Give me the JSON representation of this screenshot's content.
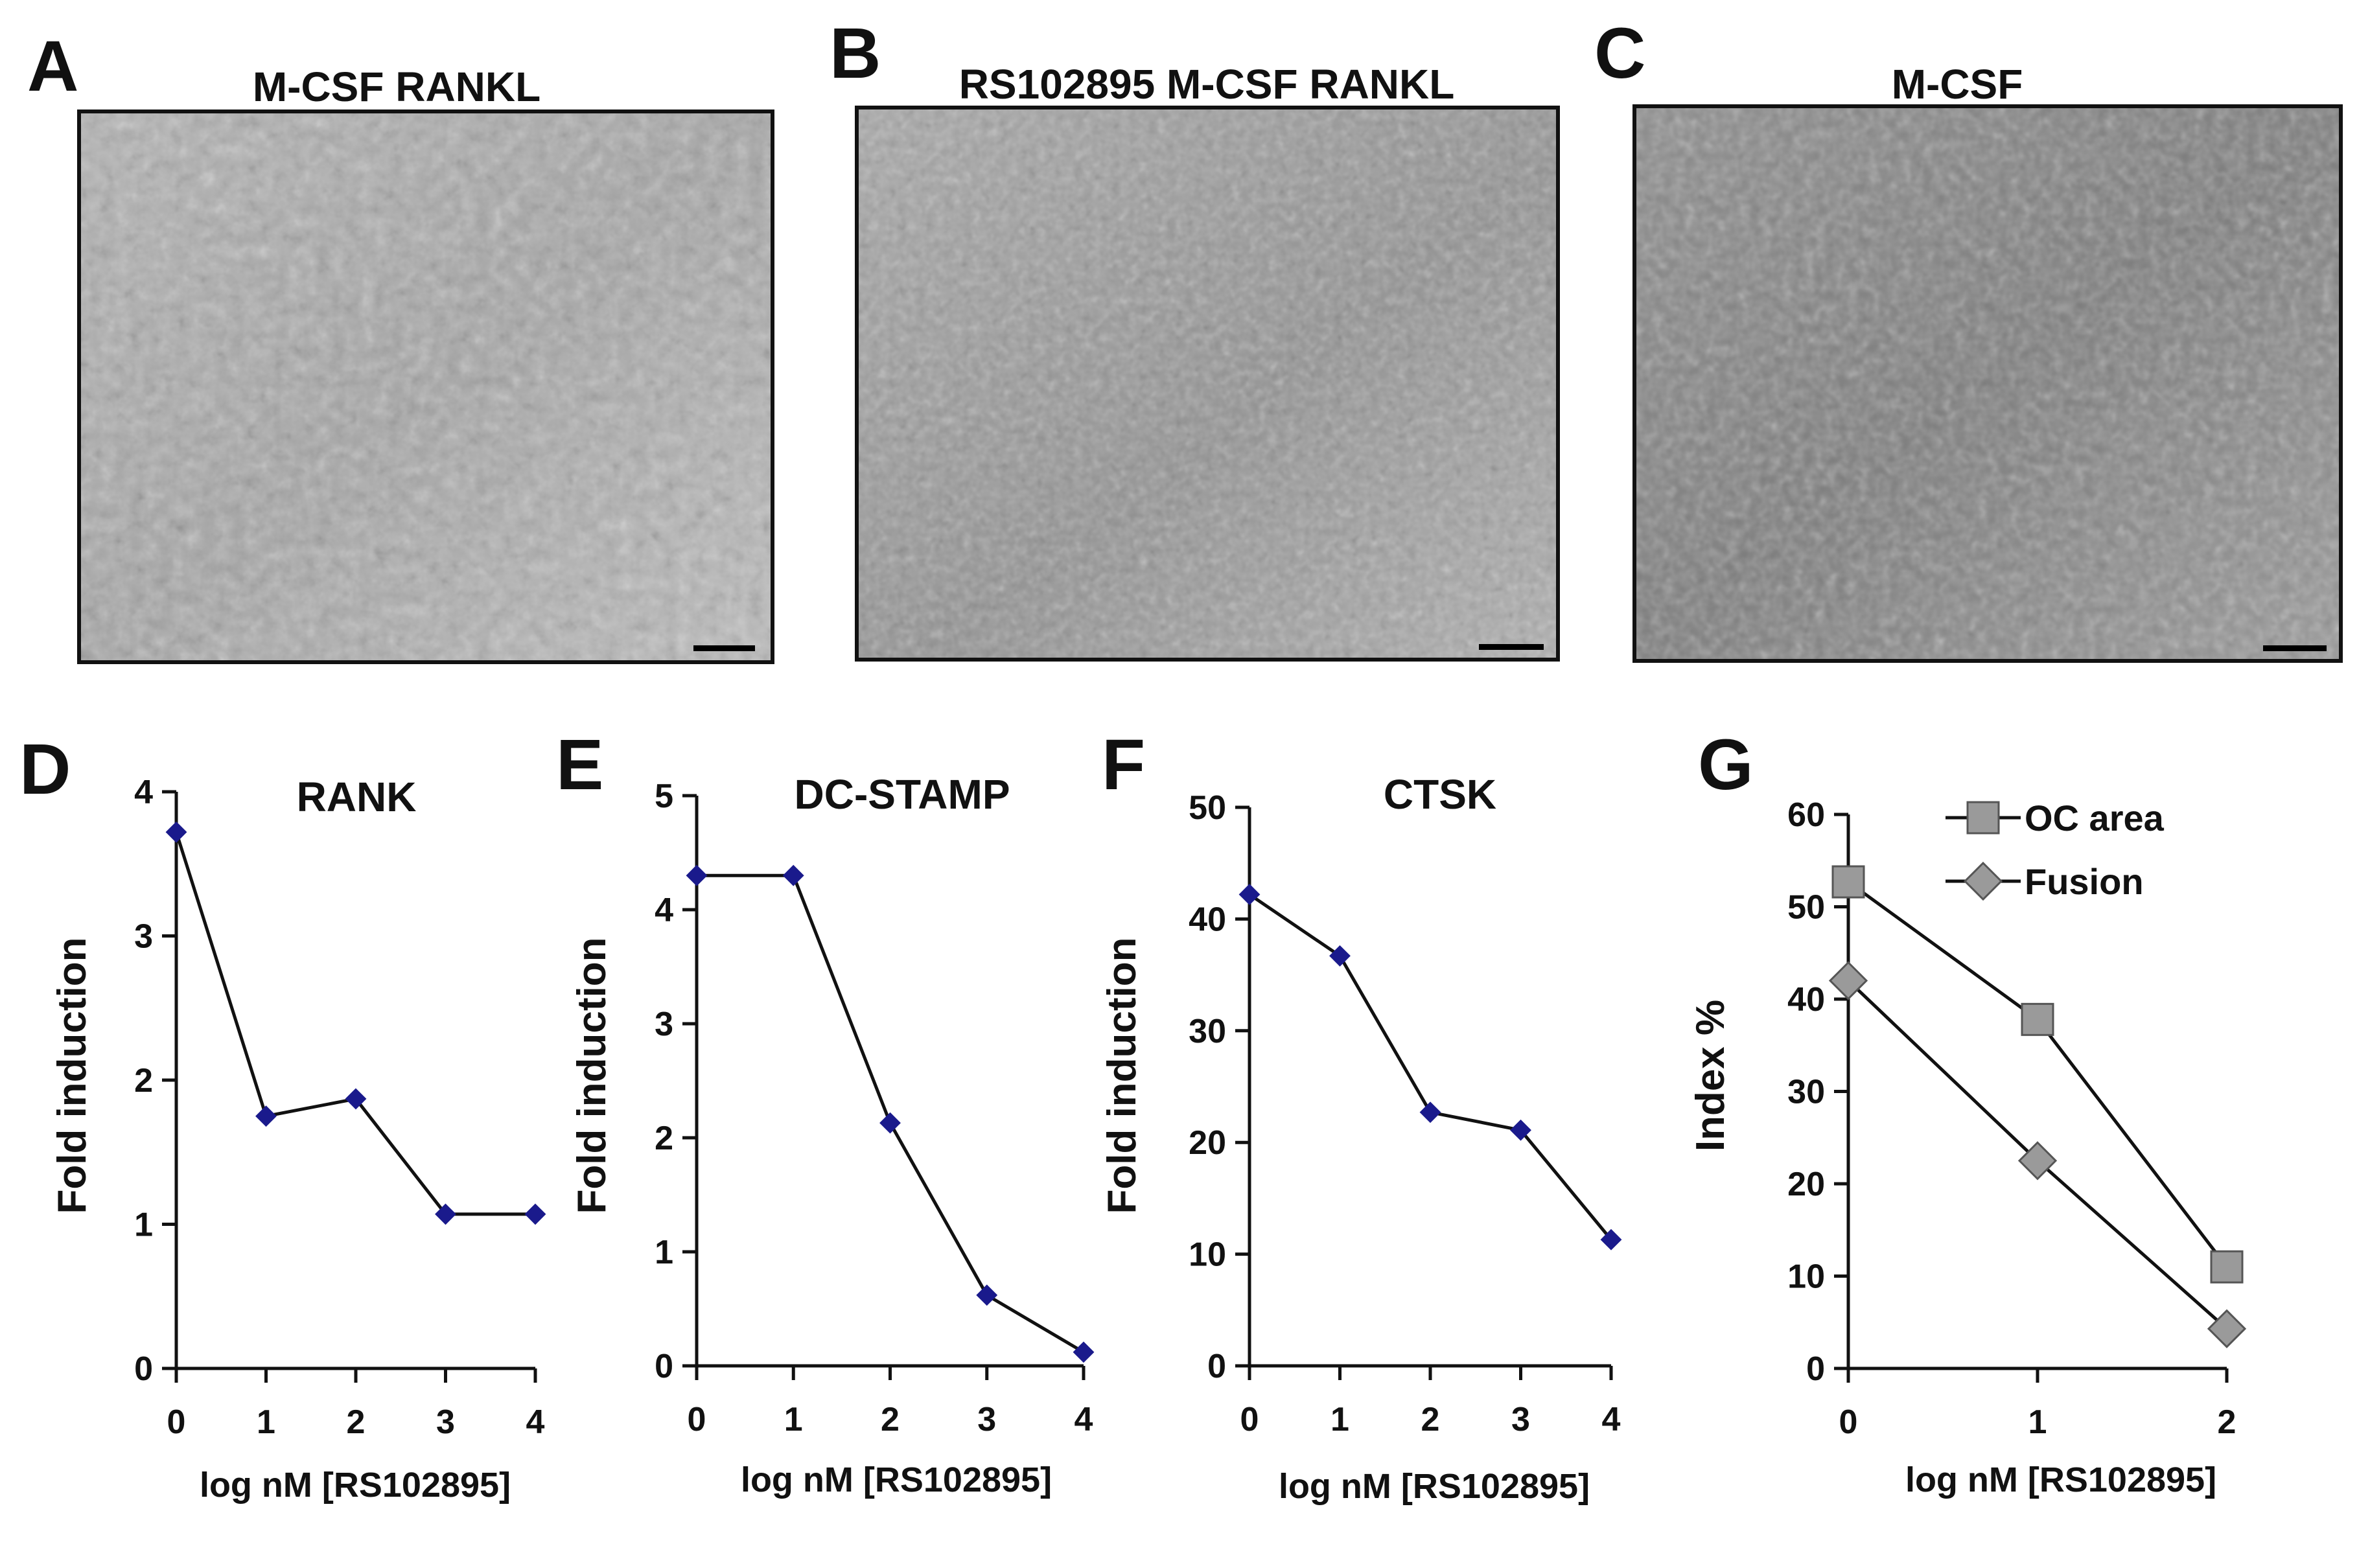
{
  "colors": {
    "marker_blue": "#1a1a8c",
    "marker_gray": "#9a9a9a",
    "line": "#111111"
  },
  "micrographs": [
    {
      "label": "A",
      "title": "M-CSF RANKL"
    },
    {
      "label": "B",
      "title": "RS102895 M-CSF RANKL"
    },
    {
      "label": "C",
      "title": "M-CSF"
    }
  ],
  "chart_data": [
    {
      "label": "D",
      "type": "line",
      "title": "RANK",
      "xlabel": "log nM [RS102895]",
      "ylabel": "Fold induction",
      "x": [
        0,
        1,
        2,
        3,
        4
      ],
      "xticks": [
        "0",
        "1",
        "2",
        "3",
        "4"
      ],
      "xlim": [
        0,
        4
      ],
      "ylim": [
        0,
        4
      ],
      "yticks": [
        "0",
        "1",
        "2",
        "3",
        "4"
      ],
      "series": [
        {
          "name": "RANK",
          "values": [
            3.72,
            1.75,
            1.87,
            1.07,
            1.07
          ]
        }
      ]
    },
    {
      "label": "E",
      "type": "line",
      "title": "DC-STAMP",
      "xlabel": "log nM [RS102895]",
      "ylabel": "Fold induction",
      "x": [
        0,
        1,
        2,
        3,
        4
      ],
      "xticks": [
        "0",
        "1",
        "2",
        "3",
        "4"
      ],
      "xlim": [
        0,
        4
      ],
      "ylim": [
        0,
        5
      ],
      "yticks": [
        "0",
        "1",
        "2",
        "3",
        "4",
        "5"
      ],
      "series": [
        {
          "name": "DC-STAMP",
          "values": [
            4.3,
            4.3,
            2.13,
            0.62,
            0.12
          ]
        }
      ]
    },
    {
      "label": "F",
      "type": "line",
      "title": "CTSK",
      "xlabel": "log nM [RS102895]",
      "ylabel": "Fold induction",
      "x": [
        0,
        1,
        2,
        3,
        4
      ],
      "xticks": [
        "0",
        "1",
        "2",
        "3",
        "4"
      ],
      "xlim": [
        0,
        4
      ],
      "ylim": [
        0,
        50
      ],
      "yticks": [
        "0",
        "10",
        "20",
        "30",
        "40",
        "50"
      ],
      "series": [
        {
          "name": "CTSK",
          "values": [
            42.2,
            36.7,
            22.7,
            21.1,
            11.3
          ]
        }
      ]
    },
    {
      "label": "G",
      "type": "line",
      "title": "",
      "xlabel": "log nM [RS102895]",
      "ylabel": "Index %",
      "x": [
        0,
        1,
        2
      ],
      "xticks": [
        "0",
        "1",
        "2"
      ],
      "xlim": [
        0,
        2
      ],
      "ylim": [
        0,
        60
      ],
      "yticks": [
        "0",
        "10",
        "20",
        "30",
        "40",
        "50",
        "60"
      ],
      "legend": "top-right",
      "series": [
        {
          "name": "OC area",
          "marker": "square",
          "values": [
            52.7,
            37.8,
            11.0
          ]
        },
        {
          "name": "Fusion",
          "marker": "diamond",
          "values": [
            42.0,
            22.5,
            4.3
          ]
        }
      ]
    }
  ]
}
